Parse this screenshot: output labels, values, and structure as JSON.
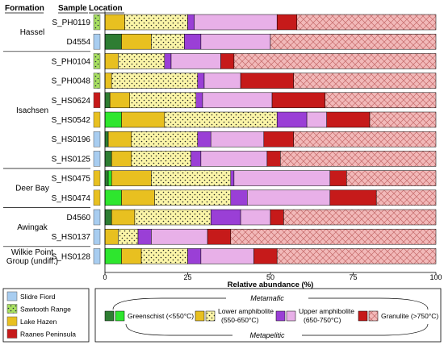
{
  "headers": {
    "formation": "Formation",
    "sample": "Sample",
    "location": "Location"
  },
  "colors": {
    "greenschist_meta": "#2e7d32",
    "greenschist_pel": "#2ee62e",
    "lower_amph_meta": "#e8c020",
    "lower_amph_pel": "#fbf5a8",
    "upper_amph_meta": "#9a3fd6",
    "upper_amph_pel": "#e8b0e8",
    "granulite_meta": "#c61a1a",
    "granulite_pel": "#f2b9b9",
    "loc_slidre": "#a8cdf0",
    "loc_sawtooth": "#a8e060",
    "loc_lakehazen": "#e8c020",
    "loc_raanes": "#c61a1a"
  },
  "formations": [
    {
      "name": "Hassel",
      "rows": [
        0,
        1
      ]
    },
    {
      "name": "Isachsen",
      "rows": [
        2,
        3,
        4,
        5,
        6,
        7
      ]
    },
    {
      "name": "Deer Bay",
      "rows": [
        8,
        9
      ]
    },
    {
      "name": "Awingak",
      "rows": [
        10,
        11
      ]
    },
    {
      "name": "Wilkie Point\nGroup (undiff.)",
      "rows": [
        12
      ]
    }
  ],
  "location_legend": [
    {
      "key": "loc_slidre",
      "label": "Slidre Fiord"
    },
    {
      "key": "loc_sawtooth",
      "label": "Sawtooth Range"
    },
    {
      "key": "loc_lakehazen",
      "label": "Lake Hazen"
    },
    {
      "key": "loc_raanes",
      "label": "Raanes Peninsula"
    }
  ],
  "facies_legend": {
    "metamafic": "Metamafic",
    "metapelitic": "Metapelitic",
    "greenschist": "Greenschist (<550°C)",
    "lower_amph_1": "Lower amphibolite",
    "lower_amph_2": "(550-650°C)",
    "upper_amph_1": "Upper amphibolite",
    "upper_amph_2": "(650-750°C)",
    "granulite": "Granulite (>750°C)"
  },
  "chart_data": {
    "type": "bar",
    "orientation": "horizontal",
    "stacked": true,
    "xlabel": "Relative abundance (%)",
    "xlim": [
      0,
      100
    ],
    "xticks": [
      0,
      25,
      50,
      75,
      100
    ],
    "categories": [
      "S_PH0119",
      "D4554",
      "S_PH0104",
      "S_PH0048",
      "S_HS0624",
      "S_HS0542",
      "S_HS0196",
      "S_HS0125",
      "S_HS0475",
      "S_HS0474",
      "D4560",
      "S_HS0137",
      "S_HS0128"
    ],
    "locations": [
      "loc_sawtooth",
      "loc_slidre",
      "loc_sawtooth",
      "loc_sawtooth",
      "loc_raanes",
      "loc_lakehazen",
      "loc_slidre",
      "loc_slidre",
      "loc_lakehazen",
      "loc_lakehazen",
      "loc_slidre",
      "loc_slidre",
      "loc_slidre"
    ],
    "series": [
      {
        "key": "greenschist_meta",
        "values": [
          0,
          5,
          0,
          0,
          1.5,
          0,
          1,
          2,
          1,
          0,
          2,
          0,
          0
        ]
      },
      {
        "key": "greenschist_pel",
        "values": [
          0,
          0,
          0,
          0,
          0,
          5,
          0,
          0,
          1,
          5,
          0,
          0,
          5
        ]
      },
      {
        "key": "lower_amph_meta",
        "values": [
          6,
          9,
          4,
          2,
          6,
          13,
          7,
          6,
          12,
          10,
          7,
          4,
          6
        ]
      },
      {
        "key": "lower_amph_pel",
        "values": [
          19,
          10,
          14,
          26,
          20,
          34,
          20,
          18,
          24,
          23,
          23,
          6,
          14
        ]
      },
      {
        "key": "upper_amph_meta",
        "values": [
          2,
          5,
          2,
          2,
          2,
          9,
          4,
          3,
          1,
          5,
          9,
          4,
          4
        ]
      },
      {
        "key": "upper_amph_pel",
        "values": [
          25,
          21,
          15,
          11,
          21,
          6,
          16,
          20,
          29,
          25,
          9,
          17,
          16
        ]
      },
      {
        "key": "granulite_meta",
        "values": [
          6,
          0,
          4,
          16,
          16,
          13,
          9,
          4,
          5,
          14,
          4,
          7,
          7
        ]
      },
      {
        "key": "granulite_pel",
        "values": [
          42,
          50,
          61,
          43,
          33.5,
          20,
          43,
          47,
          27,
          18,
          46,
          62,
          48
        ]
      }
    ]
  }
}
